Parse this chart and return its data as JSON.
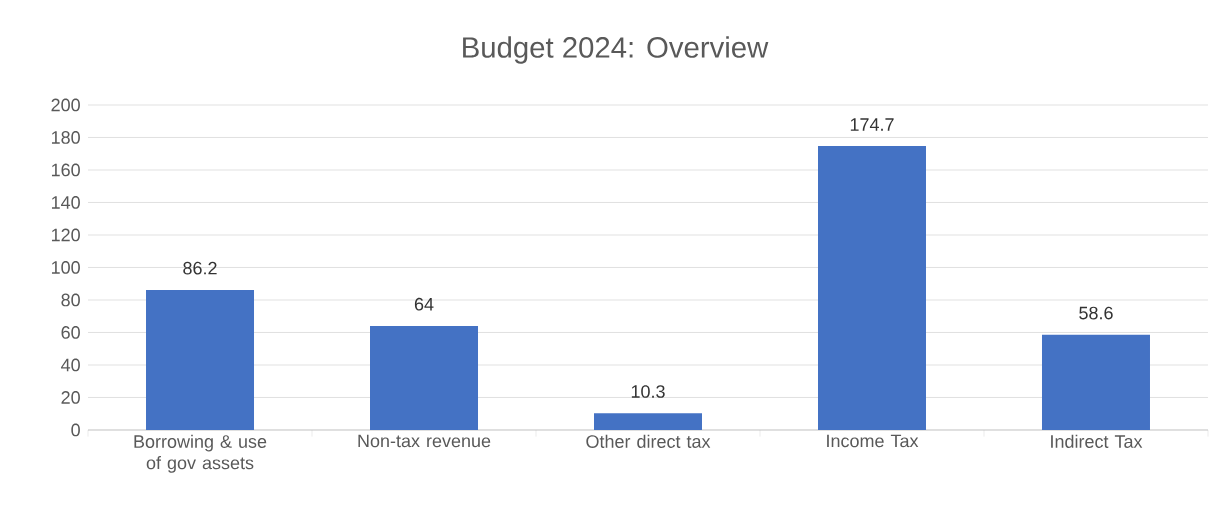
{
  "chart_data": {
    "type": "bar",
    "title": "Budget 2024: Overview",
    "categories": [
      "Borrowing & use of gov assets",
      "Non-tax revenue",
      "Other direct tax",
      "Income Tax",
      "Indirect Tax"
    ],
    "values": [
      86.2,
      64,
      10.3,
      174.7,
      58.6
    ],
    "color": "#4472c4",
    "ylim": [
      0,
      200
    ],
    "yticks": [
      0,
      20,
      40,
      60,
      80,
      100,
      120,
      140,
      160,
      180,
      200
    ],
    "grid": "y",
    "data_labels": true
  }
}
